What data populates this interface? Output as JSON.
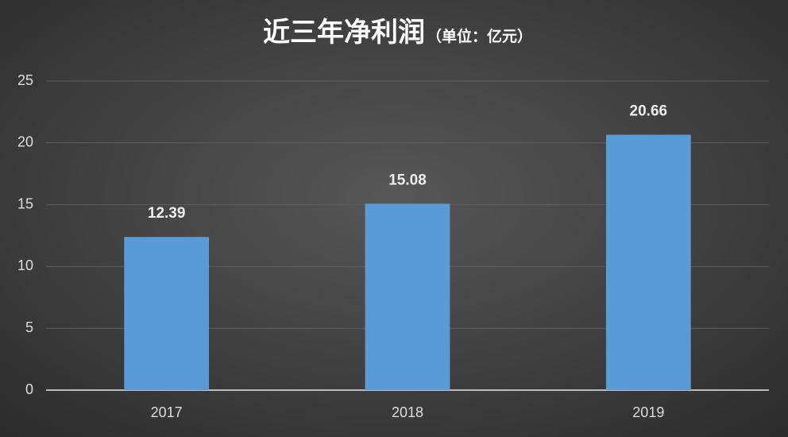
{
  "chart_data": {
    "type": "bar",
    "title": "近三年净利润",
    "subtitle": "（单位：亿元）",
    "categories": [
      "2017",
      "2018",
      "2019"
    ],
    "values": [
      12.39,
      15.08,
      20.66
    ],
    "color": "#5b9bd5",
    "ylim": [
      0,
      25
    ],
    "yticks": [
      0,
      5,
      10,
      15,
      20,
      25
    ],
    "grid": true
  }
}
